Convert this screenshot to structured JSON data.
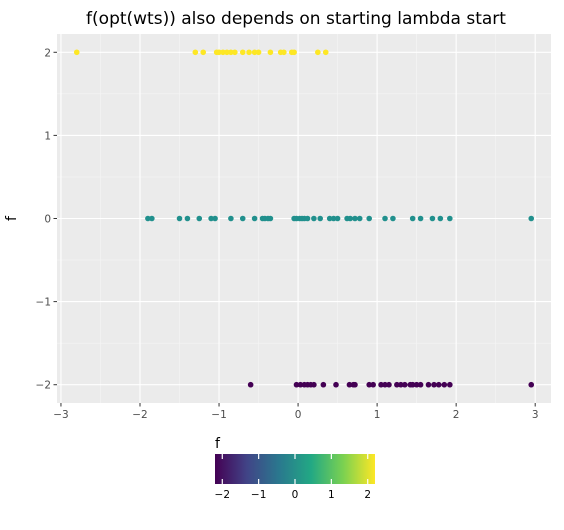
{
  "chart_data": {
    "type": "scatter",
    "title": "f(opt(wts)) also depends on starting lambda start",
    "xlabel": "",
    "ylabel": "f",
    "xlim": [
      -3.05,
      3.2
    ],
    "ylim": [
      -2.22,
      2.22
    ],
    "x_ticks": [
      -3,
      -2,
      -1,
      0,
      1,
      2,
      3
    ],
    "x_tick_labels": [
      "-3",
      "-2",
      "-1",
      "0",
      "1",
      "2",
      "3"
    ],
    "y_ticks": [
      -2,
      -1,
      0,
      1,
      2
    ],
    "y_tick_labels": [
      "-2",
      "-1",
      "0",
      "1",
      "2"
    ],
    "grid": true,
    "color_scale": {
      "name": "viridis",
      "title": "f",
      "min": -2.2,
      "max": 2.2,
      "ticks": [
        -2,
        -1,
        0,
        1,
        2
      ],
      "tick_labels": [
        "-2",
        "-1",
        "0",
        "1",
        "2"
      ],
      "colors": [
        "#440154",
        "#414487",
        "#2a788e",
        "#22a884",
        "#7ad151",
        "#fde725"
      ]
    },
    "series": [
      {
        "y": 2,
        "color": "#fde725",
        "x": [
          -2.8,
          -1.3,
          -1.2,
          -1.03,
          -1.0,
          -0.95,
          -0.9,
          -0.85,
          -0.8,
          -0.7,
          -0.62,
          -0.55,
          -0.5,
          -0.35,
          -0.22,
          -0.18,
          -0.08,
          -0.05,
          0.25,
          0.35
        ]
      },
      {
        "y": 0,
        "color": "#21908d",
        "x": [
          -1.9,
          -1.85,
          -1.5,
          -1.4,
          -1.25,
          -1.1,
          -1.05,
          -0.85,
          -0.7,
          -0.55,
          -0.45,
          -0.42,
          -0.38,
          -0.35,
          -0.05,
          -0.02,
          0.02,
          0.05,
          0.08,
          0.12,
          0.2,
          0.28,
          0.4,
          0.45,
          0.5,
          0.62,
          0.66,
          0.72,
          0.78,
          0.9,
          1.1,
          1.2,
          1.45,
          1.55,
          1.7,
          1.8,
          1.92,
          2.95
        ]
      },
      {
        "y": -2,
        "color": "#440154",
        "x": [
          -0.6,
          -0.02,
          0.03,
          0.08,
          0.12,
          0.16,
          0.2,
          0.32,
          0.48,
          0.65,
          0.7,
          0.72,
          0.9,
          0.95,
          1.05,
          1.1,
          1.15,
          1.25,
          1.3,
          1.35,
          1.42,
          1.45,
          1.5,
          1.55,
          1.65,
          1.72,
          1.78,
          1.85,
          1.92,
          2.95
        ]
      }
    ]
  }
}
